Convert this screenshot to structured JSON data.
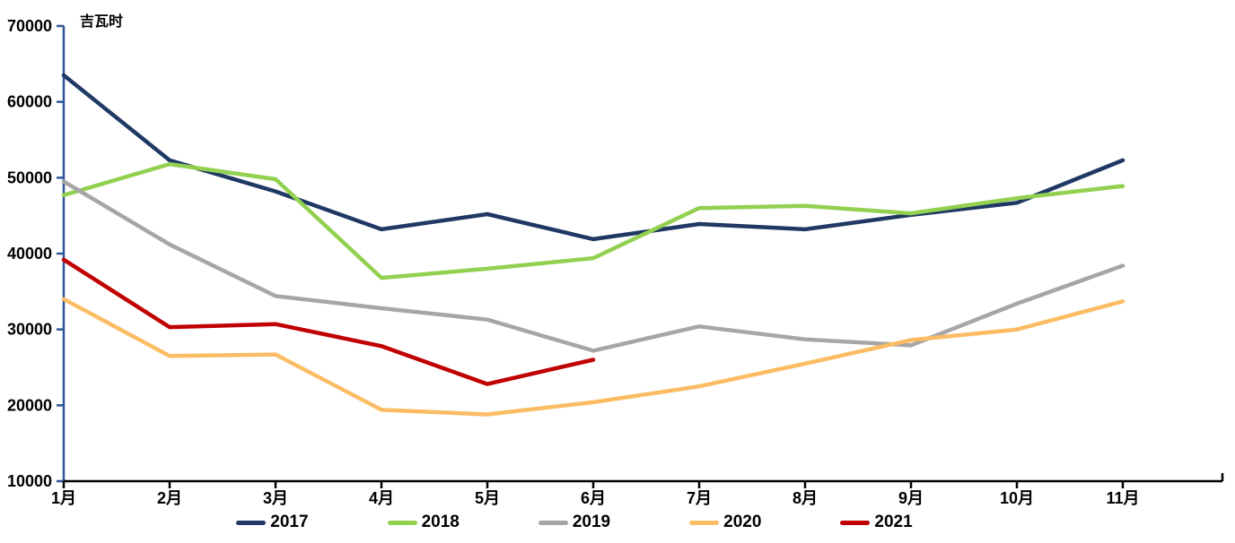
{
  "chart_data": {
    "type": "line",
    "title": "",
    "unit_label": "吉瓦时",
    "categories": [
      "1月",
      "2月",
      "3月",
      "4月",
      "5月",
      "6月",
      "7月",
      "8月",
      "9月",
      "10月",
      "11月"
    ],
    "ylim": [
      10000,
      70000
    ],
    "y_ticks": [
      70000,
      60000,
      50000,
      40000,
      30000,
      20000,
      10000
    ],
    "grid": false,
    "legend_position": "bottom",
    "axis_colors": {
      "y_axis": "#2F5597",
      "x_axis": "#000000"
    },
    "series": [
      {
        "name": "2017",
        "color": "#1F3864",
        "values": [
          63500,
          52300,
          48200,
          43200,
          45200,
          41900,
          43900,
          43200,
          45100,
          46700,
          52300
        ]
      },
      {
        "name": "2018",
        "color": "#92D050",
        "values": [
          47700,
          51800,
          49800,
          36800,
          38000,
          39400,
          46000,
          46300,
          45300,
          47300,
          48900
        ]
      },
      {
        "name": "2019",
        "color": "#A6A6A6",
        "values": [
          49500,
          41200,
          34400,
          32800,
          31300,
          27200,
          30400,
          28700,
          27900,
          33400,
          38400
        ]
      },
      {
        "name": "2020",
        "color": "#FBBC64",
        "values": [
          34000,
          26500,
          26700,
          19400,
          18800,
          20400,
          22500,
          25500,
          28600,
          30000,
          33700
        ]
      },
      {
        "name": "2021",
        "color": "#C00000",
        "values": [
          39200,
          30300,
          30700,
          27800,
          22800,
          26000
        ]
      }
    ]
  }
}
